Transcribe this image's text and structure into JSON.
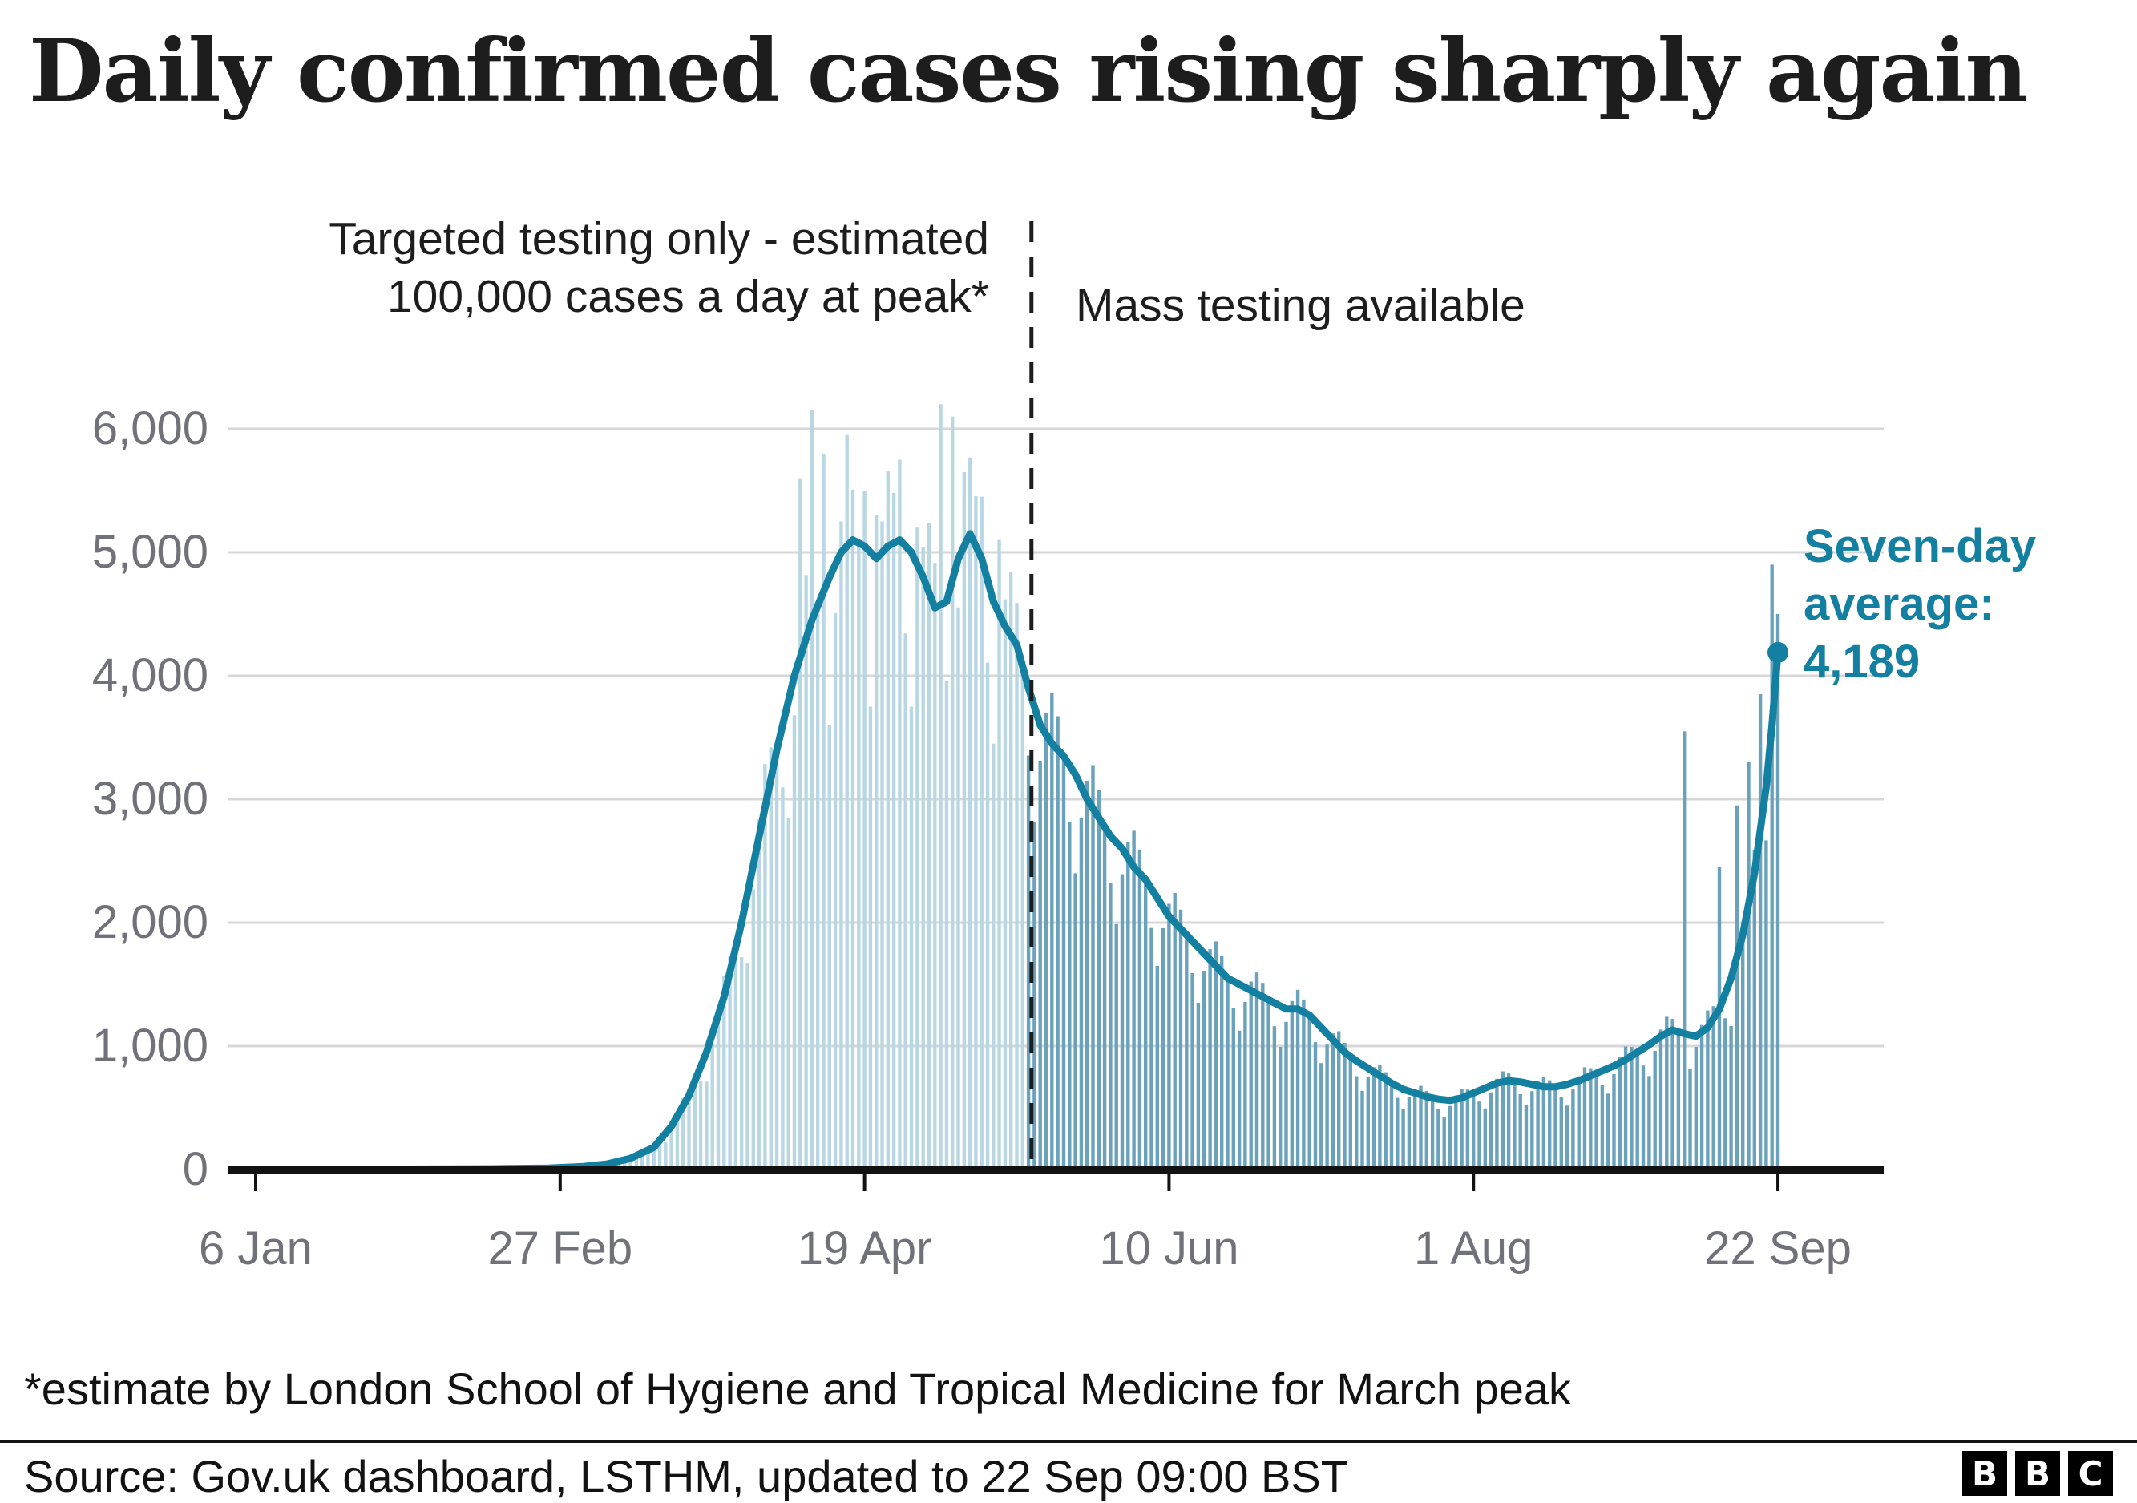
{
  "title": "Daily confirmed cases rising sharply again",
  "annotations": {
    "targeted_line1": "Targeted testing only - estimated",
    "targeted_line2": "100,000 cases a day at peak*",
    "mass_testing": "Mass testing available",
    "seven_day_label_lines": [
      "Seven-day",
      "average:"
    ],
    "seven_day_value": "4,189"
  },
  "footnote": "*estimate by London School of Hygiene and Tropical Medicine for March peak",
  "source": "Source: Gov.uk dashboard, LSTHM, updated to 22 Sep 09:00 BST",
  "logo_letters": [
    "B",
    "B",
    "C"
  ],
  "colors": {
    "bar_light": "#b8d7e2",
    "bar_dark": "#69a2ba",
    "line": "#1380a1",
    "callout_teal": "#1380a1",
    "grid": "#d7d7d7",
    "axis_text": "#71717a",
    "ink": "#121212"
  },
  "chart_data": {
    "type": "bar",
    "title": "Daily confirmed cases rising sharply again",
    "xlabel": "",
    "ylabel": "",
    "ylim": [
      0,
      6000
    ],
    "grid": true,
    "legend": "none",
    "y_ticks": [
      {
        "label": "0",
        "value": 0
      },
      {
        "label": "1,000",
        "value": 1000
      },
      {
        "label": "2,000",
        "value": 2000
      },
      {
        "label": "3,000",
        "value": 3000
      },
      {
        "label": "4,000",
        "value": 4000
      },
      {
        "label": "5,000",
        "value": 5000
      },
      {
        "label": "6,000",
        "value": 6000
      }
    ],
    "x_ticks": [
      {
        "label": "6 Jan",
        "day": 0
      },
      {
        "label": "27 Feb",
        "day": 52
      },
      {
        "label": "19 Apr",
        "day": 104
      },
      {
        "label": "10 Jun",
        "day": 156
      },
      {
        "label": "1 Aug",
        "day": 208
      },
      {
        "label": "22 Sep",
        "day": 260
      }
    ],
    "mass_testing_cutoff_day": 132,
    "seven_day_average_points": [
      [
        0,
        2
      ],
      [
        10,
        2
      ],
      [
        20,
        3
      ],
      [
        30,
        4
      ],
      [
        40,
        6
      ],
      [
        50,
        12
      ],
      [
        56,
        25
      ],
      [
        60,
        45
      ],
      [
        64,
        90
      ],
      [
        68,
        180
      ],
      [
        71,
        350
      ],
      [
        74,
        600
      ],
      [
        77,
        950
      ],
      [
        80,
        1400
      ],
      [
        83,
        2000
      ],
      [
        86,
        2700
      ],
      [
        89,
        3400
      ],
      [
        92,
        4000
      ],
      [
        95,
        4450
      ],
      [
        98,
        4800
      ],
      [
        100,
        5000
      ],
      [
        102,
        5100
      ],
      [
        104,
        5050
      ],
      [
        106,
        4950
      ],
      [
        108,
        5050
      ],
      [
        110,
        5100
      ],
      [
        112,
        5000
      ],
      [
        114,
        4800
      ],
      [
        116,
        4550
      ],
      [
        118,
        4600
      ],
      [
        120,
        4950
      ],
      [
        122,
        5150
      ],
      [
        124,
        4950
      ],
      [
        126,
        4600
      ],
      [
        128,
        4400
      ],
      [
        130,
        4250
      ],
      [
        132,
        3900
      ],
      [
        134,
        3600
      ],
      [
        136,
        3450
      ],
      [
        138,
        3350
      ],
      [
        140,
        3200
      ],
      [
        142,
        3000
      ],
      [
        144,
        2850
      ],
      [
        146,
        2700
      ],
      [
        148,
        2600
      ],
      [
        150,
        2450
      ],
      [
        152,
        2350
      ],
      [
        154,
        2200
      ],
      [
        156,
        2050
      ],
      [
        158,
        1950
      ],
      [
        160,
        1850
      ],
      [
        162,
        1750
      ],
      [
        164,
        1650
      ],
      [
        166,
        1550
      ],
      [
        168,
        1500
      ],
      [
        170,
        1450
      ],
      [
        172,
        1400
      ],
      [
        174,
        1350
      ],
      [
        176,
        1300
      ],
      [
        178,
        1300
      ],
      [
        180,
        1250
      ],
      [
        182,
        1150
      ],
      [
        184,
        1050
      ],
      [
        186,
        950
      ],
      [
        188,
        880
      ],
      [
        190,
        820
      ],
      [
        192,
        760
      ],
      [
        194,
        700
      ],
      [
        196,
        650
      ],
      [
        198,
        620
      ],
      [
        200,
        590
      ],
      [
        202,
        570
      ],
      [
        204,
        560
      ],
      [
        206,
        580
      ],
      [
        208,
        620
      ],
      [
        210,
        660
      ],
      [
        212,
        700
      ],
      [
        214,
        720
      ],
      [
        216,
        710
      ],
      [
        218,
        690
      ],
      [
        220,
        670
      ],
      [
        222,
        670
      ],
      [
        224,
        690
      ],
      [
        226,
        720
      ],
      [
        228,
        760
      ],
      [
        230,
        800
      ],
      [
        232,
        840
      ],
      [
        234,
        890
      ],
      [
        236,
        950
      ],
      [
        238,
        1010
      ],
      [
        240,
        1080
      ],
      [
        242,
        1130
      ],
      [
        244,
        1100
      ],
      [
        246,
        1080
      ],
      [
        248,
        1150
      ],
      [
        250,
        1300
      ],
      [
        252,
        1550
      ],
      [
        254,
        1900
      ],
      [
        256,
        2400
      ],
      [
        258,
        3100
      ],
      [
        259,
        3600
      ],
      [
        260,
        4189
      ]
    ],
    "end_point": {
      "day": 260,
      "value": 4189,
      "label": "Seven-day average: 4,189"
    },
    "daily_bar_model": {
      "weekday_factors": [
        0.75,
        0.92,
        1.05,
        1.12,
        1.08,
        1.0,
        0.86
      ],
      "spikes": {
        "93": 5600,
        "95": 6150,
        "97": 5800,
        "101": 5950,
        "104": 5500,
        "106": 5300,
        "110": 5750,
        "113": 5200,
        "117": 6200,
        "119": 6100,
        "121": 5650,
        "124": 5450,
        "127": 5100,
        "244": 3550,
        "250": 2450,
        "253": 2950,
        "255": 3300,
        "257": 3850,
        "259": 4900,
        "260": 4500
      }
    }
  }
}
